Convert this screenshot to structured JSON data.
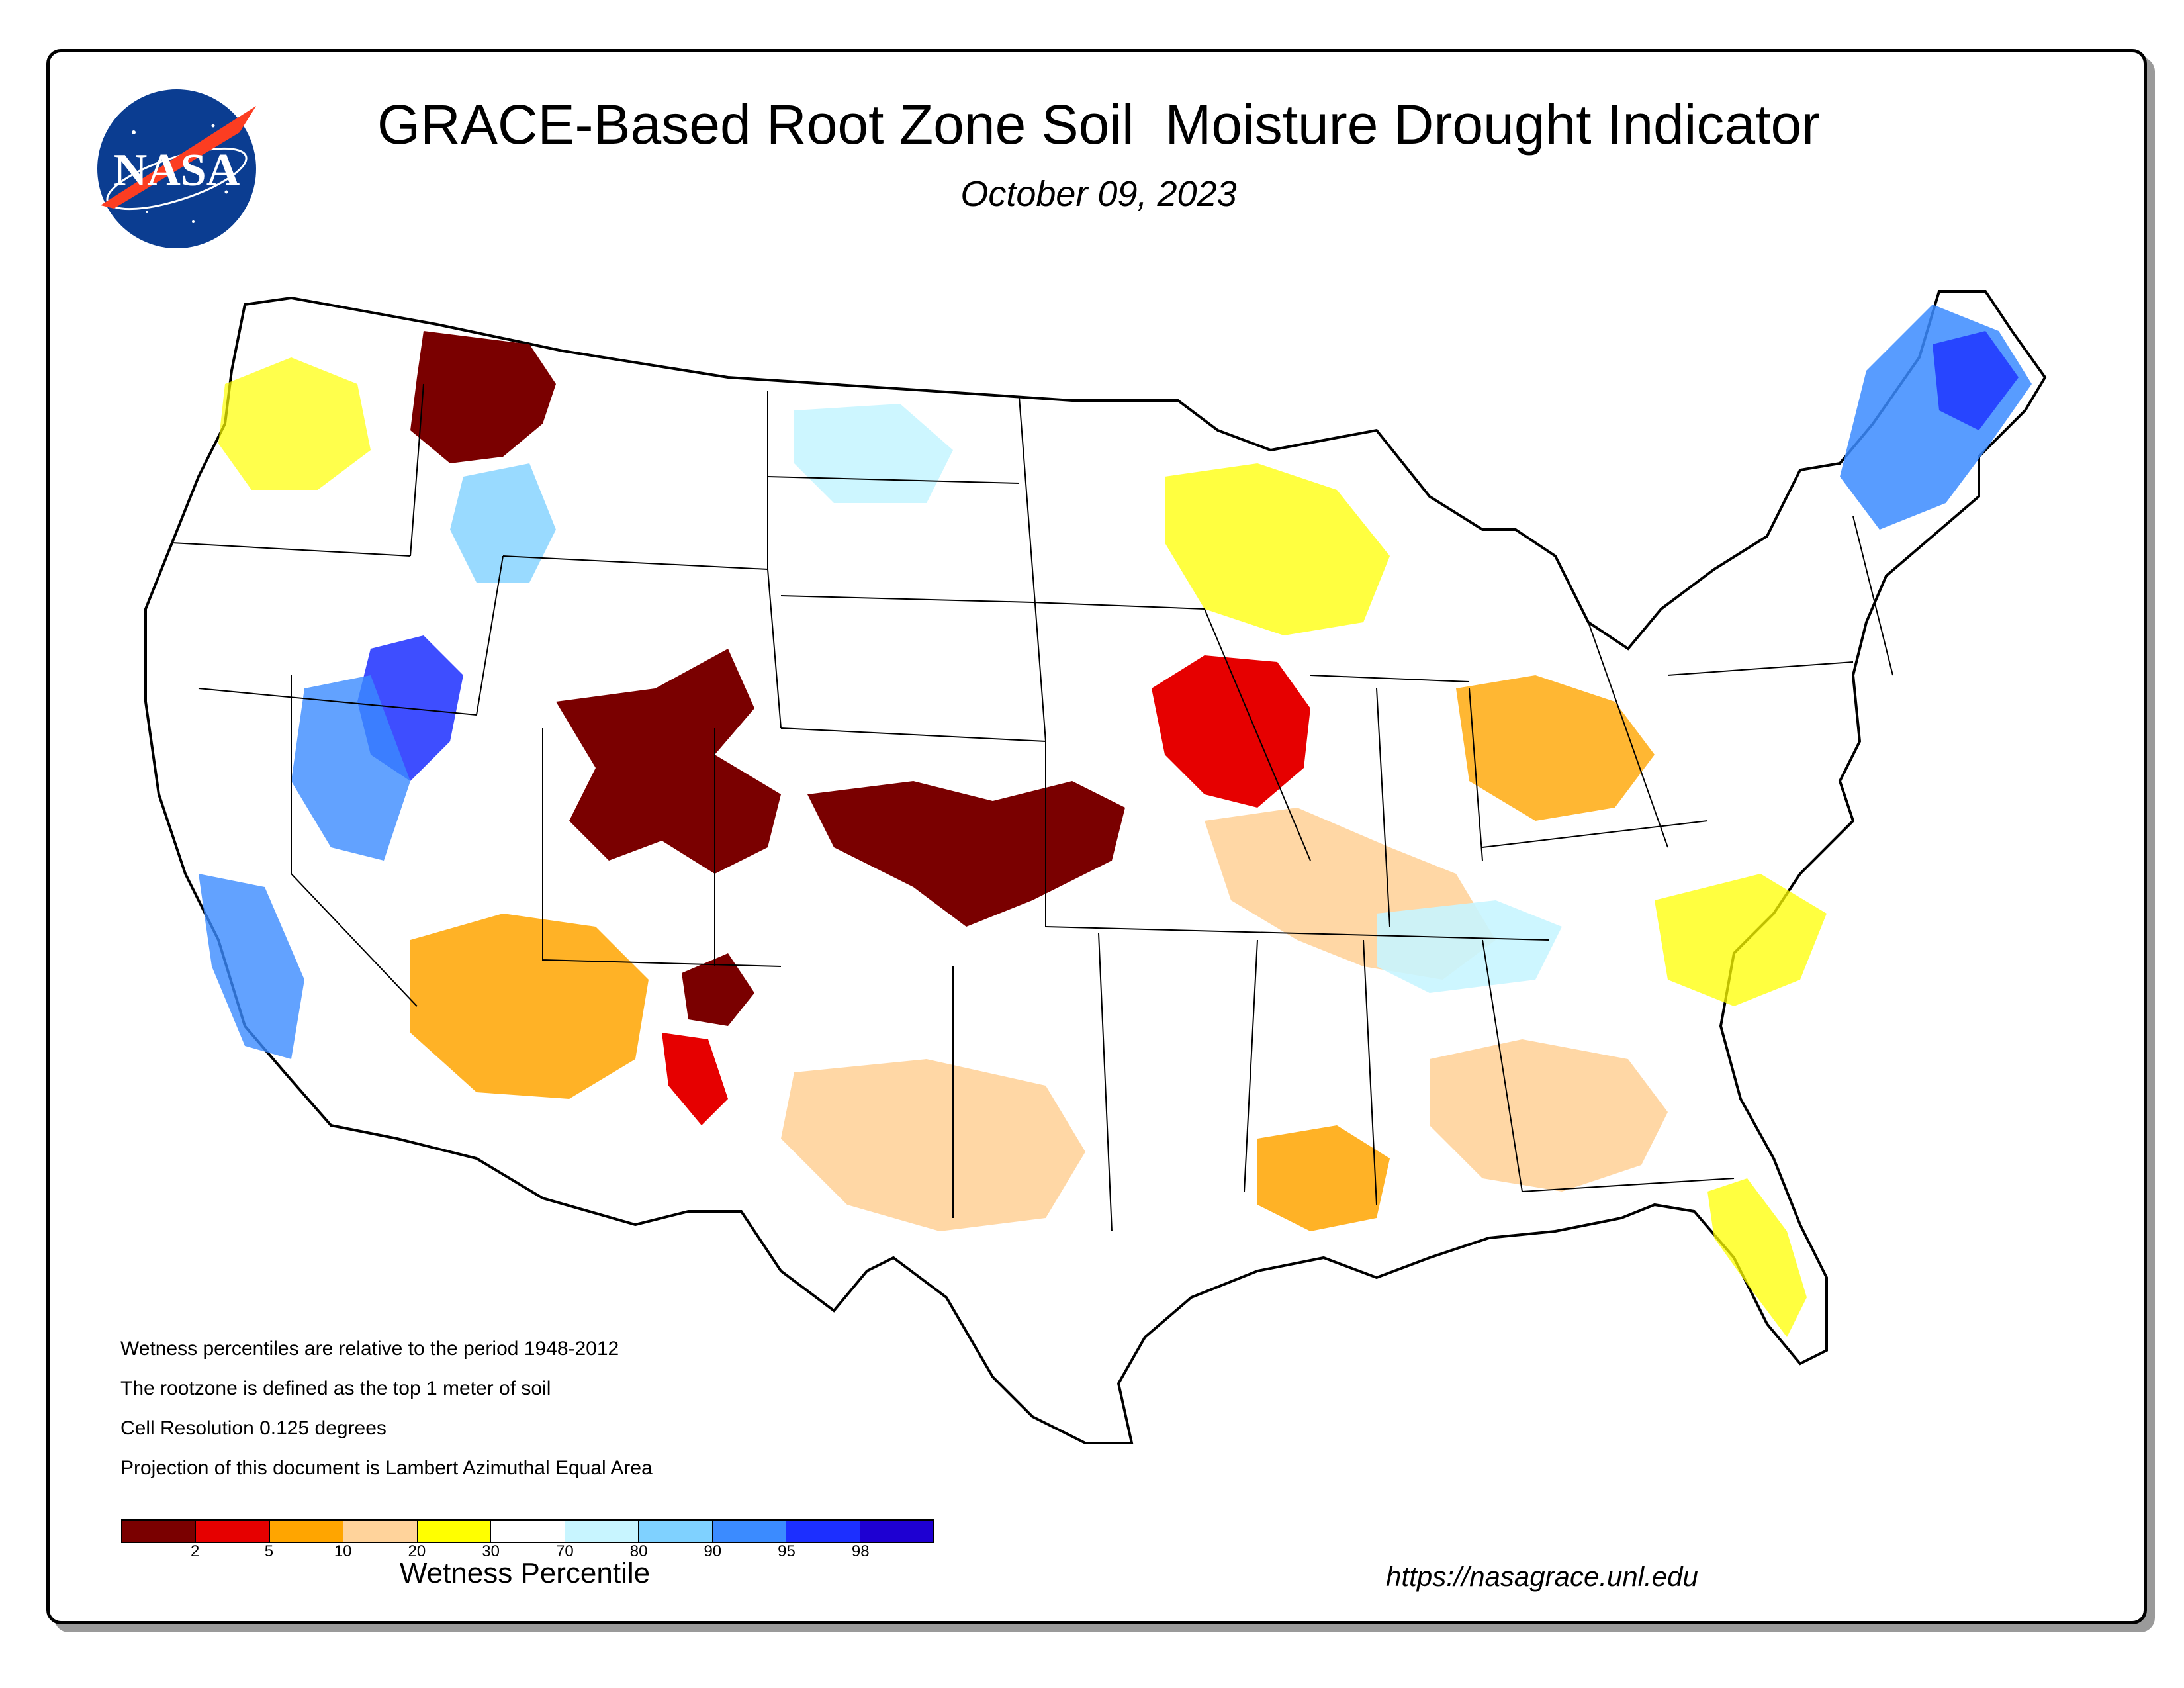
{
  "header": {
    "title": "GRACE-Based Root Zone Soil  Moisture Drought Indicator",
    "date": "October 09, 2023"
  },
  "logo": {
    "text": "NASA",
    "icon": "nasa-meatball-logo"
  },
  "notes": [
    "Wetness percentiles are relative to the period 1948-2012",
    "The rootzone is defined as the top 1 meter of soil",
    "Cell Resolution 0.125 degrees",
    "Projection of this document is Lambert Azimuthal Equal Area"
  ],
  "legend": {
    "title": "Wetness Percentile",
    "colors": [
      "#7a0000",
      "#e60000",
      "#ffa500",
      "#ffd39b",
      "#ffff00",
      "#ffffff",
      "#c8f5ff",
      "#7fd1ff",
      "#3b8bff",
      "#1c2fff",
      "#1e00d2"
    ],
    "ticks": [
      "2",
      "5",
      "10",
      "20",
      "30",
      "70",
      "80",
      "90",
      "95",
      "98"
    ]
  },
  "footer": {
    "url": "https://nasagrace.unl.edu"
  },
  "colors": {
    "outline": "#000000",
    "ocean": "#ffffff"
  }
}
